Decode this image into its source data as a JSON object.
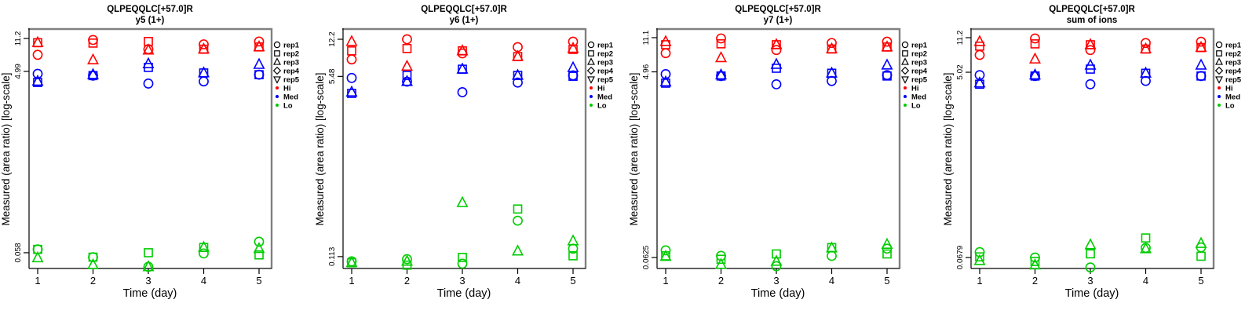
{
  "figure": {
    "ylabel": "Measured (area ratio) [log-scale]",
    "xlabel": "Time (day)",
    "xtick_labels": [
      "1",
      "2",
      "3",
      "4",
      "5"
    ],
    "colors": {
      "hi": "#FF0000",
      "med": "#0000FF",
      "lo": "#00CC00",
      "axis": "#000000",
      "box_shadow": "#808080",
      "background": "#FFFFFF"
    },
    "legend": {
      "position": "right",
      "reps": [
        {
          "symbol": "circle",
          "label": "rep1"
        },
        {
          "symbol": "square",
          "label": "rep2"
        },
        {
          "symbol": "triangle-up",
          "label": "rep3"
        },
        {
          "symbol": "diamond",
          "label": "rep4"
        },
        {
          "symbol": "triangle-down",
          "label": "rep5"
        }
      ],
      "levels": [
        {
          "label": "Hi",
          "color": "#FF0000"
        },
        {
          "label": "Med",
          "color": "#0000FF"
        },
        {
          "label": "Lo",
          "color": "#00CC00"
        }
      ]
    }
  },
  "chart_data": [
    {
      "type": "scatter",
      "title": "QLPEQQLC[+57.0]R",
      "subtitle": "y5 (1+)",
      "xlabel": "Time (day)",
      "ylabel": "Measured (area ratio) [log-scale]",
      "x": [
        1,
        2,
        3,
        4,
        5
      ],
      "yscale": "log",
      "ylim": [
        0.0394,
        13.85
      ],
      "yticks": [
        11.2,
        4.99,
        0.058
      ],
      "ytick_labels": [
        "11.2",
        "4.99",
        "0.058"
      ],
      "grid": false,
      "series": [
        {
          "name": "Hi",
          "rep": "rep1",
          "symbol": "circle",
          "color": "#FF0000",
          "values": [
            7.5,
            10.8,
            8.6,
            9.7,
            10.4
          ]
        },
        {
          "name": "Hi",
          "rep": "rep2",
          "symbol": "square",
          "color": "#FF0000",
          "values": [
            10.1,
            10.0,
            10.4,
            8.6,
            9.1
          ]
        },
        {
          "name": "Hi",
          "rep": "rep3",
          "symbol": "triangle-up",
          "color": "#FF0000",
          "values": [
            10.1,
            6.6,
            8.4,
            8.6,
            9.1
          ]
        },
        {
          "name": "Med",
          "rep": "rep1",
          "symbol": "circle",
          "color": "#0000FF",
          "values": [
            4.7,
            4.5,
            3.7,
            3.9,
            4.6
          ]
        },
        {
          "name": "Med",
          "rep": "rep2",
          "symbol": "square",
          "color": "#0000FF",
          "values": [
            3.8,
            4.5,
            5.5,
            4.8,
            4.6
          ]
        },
        {
          "name": "Med",
          "rep": "rep3",
          "symbol": "triangle-up",
          "color": "#0000FF",
          "values": [
            3.9,
            4.6,
            6.0,
            4.8,
            5.9
          ]
        },
        {
          "name": "Lo",
          "rep": "rep1",
          "symbol": "circle",
          "color": "#00CC00",
          "values": [
            0.063,
            0.052,
            0.041,
            0.057,
            0.076
          ]
        },
        {
          "name": "Lo",
          "rep": "rep2",
          "symbol": "square",
          "color": "#00CC00",
          "values": [
            0.063,
            0.052,
            0.058,
            0.066,
            0.055
          ]
        },
        {
          "name": "Lo",
          "rep": "rep3",
          "symbol": "triangle-up",
          "color": "#00CC00",
          "values": [
            0.051,
            0.043,
            0.041,
            0.066,
            0.064
          ]
        }
      ]
    },
    {
      "type": "scatter",
      "title": "QLPEQQLC[+57.0]R",
      "subtitle": "y6 (1+)",
      "xlabel": "Time (day)",
      "ylabel": "Measured (area ratio) [log-scale]",
      "x": [
        1,
        2,
        3,
        4,
        5
      ],
      "yscale": "log",
      "ylim": [
        0.0875,
        14.95
      ],
      "yticks": [
        12.2,
        5.48,
        0.113
      ],
      "ytick_labels": [
        "12.2",
        "5.48",
        "0.113"
      ],
      "grid": false,
      "series": [
        {
          "name": "Hi",
          "rep": "rep1",
          "symbol": "circle",
          "color": "#FF0000",
          "values": [
            7.9,
            12.2,
            9.0,
            10.3,
            11.6
          ]
        },
        {
          "name": "Hi",
          "rep": "rep2",
          "symbol": "square",
          "color": "#FF0000",
          "values": [
            9.5,
            10.0,
            9.5,
            8.4,
            9.8
          ]
        },
        {
          "name": "Hi",
          "rep": "rep3",
          "symbol": "triangle-up",
          "color": "#FF0000",
          "values": [
            11.6,
            6.8,
            9.5,
            8.4,
            10.0
          ]
        },
        {
          "name": "Med",
          "rep": "rep1",
          "symbol": "circle",
          "color": "#0000FF",
          "values": [
            5.3,
            4.9,
            3.9,
            4.8,
            5.6
          ]
        },
        {
          "name": "Med",
          "rep": "rep2",
          "symbol": "square",
          "color": "#0000FF",
          "values": [
            3.8,
            5.6,
            6.4,
            5.6,
            5.5
          ]
        },
        {
          "name": "Med",
          "rep": "rep3",
          "symbol": "triangle-up",
          "color": "#0000FF",
          "values": [
            3.9,
            4.9,
            6.4,
            5.6,
            6.6
          ]
        },
        {
          "name": "Lo",
          "rep": "rep1",
          "symbol": "circle",
          "color": "#00CC00",
          "values": [
            0.102,
            0.107,
            0.097,
            0.245,
            0.134
          ]
        },
        {
          "name": "Lo",
          "rep": "rep2",
          "symbol": "square",
          "color": "#00CC00",
          "values": [
            0.099,
            0.094,
            0.111,
            0.315,
            0.115
          ]
        },
        {
          "name": "Lo",
          "rep": "rep3",
          "symbol": "triangle-up",
          "color": "#00CC00",
          "values": [
            0.099,
            0.102,
            0.36,
            0.127,
            0.158
          ]
        }
      ]
    },
    {
      "type": "scatter",
      "title": "QLPEQQLC[+57.0]R",
      "subtitle": "y7 (1+)",
      "xlabel": "Time (day)",
      "ylabel": "Measured (area ratio) [log-scale]",
      "x": [
        1,
        2,
        3,
        4,
        5
      ],
      "yscale": "log",
      "ylim": [
        0.0483,
        13.35
      ],
      "yticks": [
        11.1,
        4.96,
        0.0625
      ],
      "ytick_labels": [
        "11.1",
        "4.96",
        "0.0625"
      ],
      "grid": false,
      "series": [
        {
          "name": "Hi",
          "rep": "rep1",
          "symbol": "circle",
          "color": "#FF0000",
          "values": [
            7.7,
            10.9,
            8.3,
            9.8,
            10.1
          ]
        },
        {
          "name": "Hi",
          "rep": "rep2",
          "symbol": "square",
          "color": "#FF0000",
          "values": [
            9.4,
            9.6,
            9.4,
            8.5,
            8.9
          ]
        },
        {
          "name": "Hi",
          "rep": "rep3",
          "symbol": "triangle-up",
          "color": "#FF0000",
          "values": [
            10.1,
            6.9,
            9.4,
            8.5,
            8.9
          ]
        },
        {
          "name": "Med",
          "rep": "rep1",
          "symbol": "circle",
          "color": "#0000FF",
          "values": [
            4.7,
            4.5,
            3.7,
            4.0,
            4.6
          ]
        },
        {
          "name": "Med",
          "rep": "rep2",
          "symbol": "square",
          "color": "#0000FF",
          "values": [
            3.8,
            4.5,
            5.4,
            4.8,
            4.5
          ]
        },
        {
          "name": "Med",
          "rep": "rep3",
          "symbol": "triangle-up",
          "color": "#0000FF",
          "values": [
            3.9,
            4.6,
            5.9,
            4.8,
            5.8
          ]
        },
        {
          "name": "Lo",
          "rep": "rep1",
          "symbol": "circle",
          "color": "#00CC00",
          "values": [
            0.074,
            0.065,
            0.051,
            0.065,
            0.077
          ]
        },
        {
          "name": "Lo",
          "rep": "rep2",
          "symbol": "square",
          "color": "#00CC00",
          "values": [
            0.065,
            0.06,
            0.068,
            0.079,
            0.068
          ]
        },
        {
          "name": "Lo",
          "rep": "rep3",
          "symbol": "triangle-up",
          "color": "#00CC00",
          "values": [
            0.064,
            0.053,
            0.057,
            0.078,
            0.085
          ]
        }
      ]
    },
    {
      "type": "scatter",
      "title": "QLPEQQLC[+57.0]R",
      "subtitle": "sum of ions",
      "xlabel": "Time (day)",
      "ylabel": "Measured (area ratio) [log-scale]",
      "x": [
        1,
        2,
        3,
        4,
        5
      ],
      "yscale": "log",
      "ylim": [
        0.0527,
        13.44
      ],
      "yticks": [
        11.2,
        5.02,
        0.0679
      ],
      "ytick_labels": [
        "11.2",
        "5.02",
        "0.0679"
      ],
      "grid": false,
      "series": [
        {
          "name": "Hi",
          "rep": "rep1",
          "symbol": "circle",
          "color": "#FF0000",
          "values": [
            7.5,
            11.0,
            8.4,
            9.9,
            10.2
          ]
        },
        {
          "name": "Hi",
          "rep": "rep2",
          "symbol": "square",
          "color": "#FF0000",
          "values": [
            9.2,
            9.7,
            9.5,
            8.6,
            8.9
          ]
        },
        {
          "name": "Hi",
          "rep": "rep3",
          "symbol": "triangle-up",
          "color": "#FF0000",
          "values": [
            10.2,
            6.8,
            9.5,
            8.6,
            8.9
          ]
        },
        {
          "name": "Med",
          "rep": "rep1",
          "symbol": "circle",
          "color": "#0000FF",
          "values": [
            4.7,
            4.6,
            3.8,
            4.1,
            4.6
          ]
        },
        {
          "name": "Med",
          "rep": "rep2",
          "symbol": "square",
          "color": "#0000FF",
          "values": [
            3.8,
            4.6,
            5.4,
            4.9,
            4.6
          ]
        },
        {
          "name": "Med",
          "rep": "rep3",
          "symbol": "triangle-up",
          "color": "#0000FF",
          "values": [
            3.9,
            4.7,
            5.9,
            4.9,
            5.9
          ]
        },
        {
          "name": "Lo",
          "rep": "rep1",
          "symbol": "circle",
          "color": "#00CC00",
          "values": [
            0.077,
            0.068,
            0.054,
            0.085,
            0.086
          ]
        },
        {
          "name": "Lo",
          "rep": "rep2",
          "symbol": "square",
          "color": "#00CC00",
          "values": [
            0.069,
            0.062,
            0.074,
            0.107,
            0.07
          ]
        },
        {
          "name": "Lo",
          "rep": "rep3",
          "symbol": "triangle-up",
          "color": "#00CC00",
          "values": [
            0.063,
            0.057,
            0.091,
            0.083,
            0.094
          ]
        }
      ]
    }
  ]
}
